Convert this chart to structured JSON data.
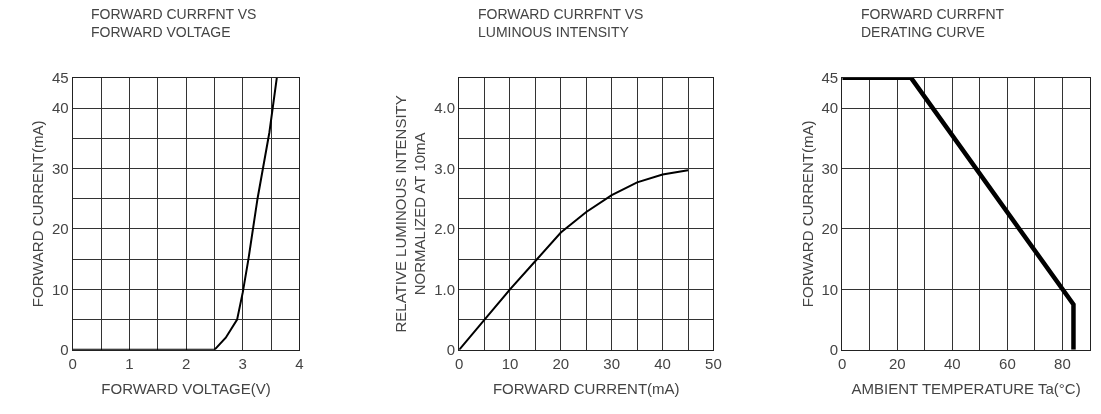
{
  "chart_data": [
    {
      "type": "line",
      "title": "FORWARD CURRFNT VS\nFORWARD VOLTAGE",
      "xlabel": "FORWARD VOLTAGE(V)",
      "ylabel": "FORWARD CURRENT(mA)",
      "x": [
        0,
        2.5,
        2.7,
        2.9,
        3.0,
        3.1,
        3.26,
        3.47,
        3.6
      ],
      "series": [
        {
          "color": "#000000",
          "values": [
            0,
            0,
            2,
            5,
            9.5,
            15,
            25,
            36,
            45
          ]
        }
      ],
      "xlim": [
        0,
        4
      ],
      "ylim": [
        0,
        45
      ],
      "xticks": [
        0,
        {
          "value": 0.5,
          "label": null
        },
        1,
        {
          "value": 1.5,
          "label": null
        },
        2,
        {
          "value": 2.5,
          "label": null
        },
        3,
        {
          "value": 3.5,
          "label": null
        },
        4
      ],
      "yticks": [
        0,
        {
          "value": 5,
          "label": null
        },
        10,
        {
          "value": 15,
          "label": null
        },
        20,
        {
          "value": 25,
          "label": null
        },
        30,
        {
          "value": 35,
          "label": null
        },
        40,
        45
      ],
      "grid": true,
      "marker": "none",
      "line_style": "solid"
    },
    {
      "type": "line",
      "title": "FORWARD CURRFNT VS\nLUMINOUS INTENSITY",
      "xlabel": "FORWARD CURRENT(mA)",
      "ylabel": "RELATIVE LUMINOUS INTENSITY\nNORMALIZED AT 10mA",
      "x": [
        0,
        5,
        10,
        15,
        20,
        25,
        30,
        35,
        40,
        45
      ],
      "series": [
        {
          "color": "#000000",
          "values": [
            0,
            0.5,
            1.0,
            1.47,
            1.94,
            2.28,
            2.56,
            2.77,
            2.9,
            2.97
          ]
        }
      ],
      "xlim": [
        0,
        50
      ],
      "ylim": [
        0,
        4.5
      ],
      "xticks": [
        0,
        {
          "value": 5,
          "label": null
        },
        10,
        {
          "value": 15,
          "label": null
        },
        20,
        {
          "value": 25,
          "label": null
        },
        30,
        {
          "value": 35,
          "label": null
        },
        40,
        {
          "value": 45,
          "label": null
        },
        50
      ],
      "yticks": [
        0,
        {
          "value": 0.5,
          "label": null
        },
        {
          "value": 1,
          "label": "1.0"
        },
        {
          "value": 1.5,
          "label": null
        },
        {
          "value": 2,
          "label": "2.0"
        },
        {
          "value": 2.5,
          "label": null
        },
        {
          "value": 3,
          "label": "3.0"
        },
        {
          "value": 3.5,
          "label": null
        },
        {
          "value": 4,
          "label": "4.0"
        }
      ],
      "grid": true,
      "marker": "none",
      "line_style": "solid"
    },
    {
      "type": "line",
      "title": "FORWARD CURRFNT\nDERATING CURVE",
      "xlabel": "AMBIENT TEMPERATURE Ta(°C)",
      "ylabel": "FORWARD CURRENT(mA)",
      "x": [
        0,
        25,
        84,
        84
      ],
      "series": [
        {
          "color": "#000000",
          "values": [
            45,
            45,
            7.5,
            0
          ]
        }
      ],
      "xlim": [
        0,
        90
      ],
      "ylim": [
        0,
        45
      ],
      "xticks": [
        0,
        {
          "value": 10,
          "label": null
        },
        20,
        {
          "value": 30,
          "label": null
        },
        40,
        {
          "value": 50,
          "label": null
        },
        60,
        {
          "value": 70,
          "label": null
        },
        80,
        {
          "value": 90,
          "label": null
        }
      ],
      "yticks": [
        0,
        10,
        20,
        30,
        40,
        45
      ],
      "grid": true,
      "marker": "none",
      "line_style": "solid"
    }
  ]
}
